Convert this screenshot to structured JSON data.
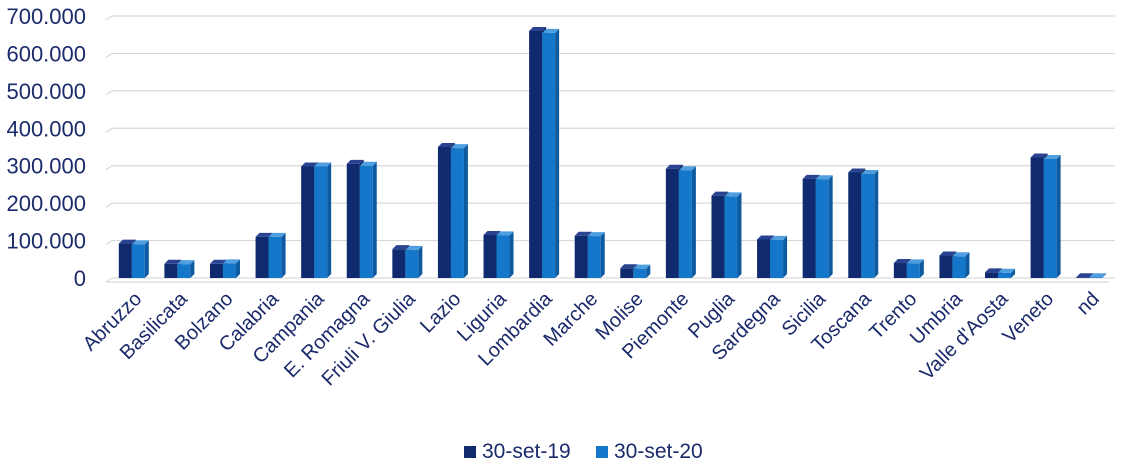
{
  "chart_data": {
    "type": "bar",
    "categories": [
      "Abruzzo",
      "Basilicata",
      "Bolzano",
      "Calabria",
      "Campania",
      "E. Romagna",
      "Friuli V. Giulia",
      "Lazio",
      "Liguria",
      "Lombardia",
      "Marche",
      "Molise",
      "Piemonte",
      "Puglia",
      "Sardegna",
      "Sicilia",
      "Toscana",
      "Trento",
      "Umbria",
      "Valle d'Aosta",
      "Veneto",
      "nd"
    ],
    "series": [
      {
        "name": "30-set-19",
        "color": "#0f2a6e",
        "values": [
          92000,
          38000,
          38000,
          110000,
          298000,
          305000,
          77000,
          350000,
          115000,
          660000,
          113000,
          26000,
          292000,
          220000,
          103000,
          265000,
          282000,
          40000,
          60000,
          15000,
          322000,
          2000
        ]
      },
      {
        "name": "30-set-20",
        "color": "#1577c9",
        "values": [
          90000,
          37000,
          39000,
          110000,
          298000,
          300000,
          75000,
          347000,
          114000,
          655000,
          112000,
          25000,
          288000,
          218000,
          102000,
          264000,
          278000,
          39000,
          58000,
          14000,
          318000,
          2000
        ]
      }
    ],
    "ytick_labels": [
      "0",
      "100.000",
      "200.000",
      "300.000",
      "400.000",
      "500.000",
      "600.000",
      "700.000"
    ],
    "ylim": [
      0,
      700000
    ],
    "grid": true,
    "legend_position": "bottom"
  }
}
